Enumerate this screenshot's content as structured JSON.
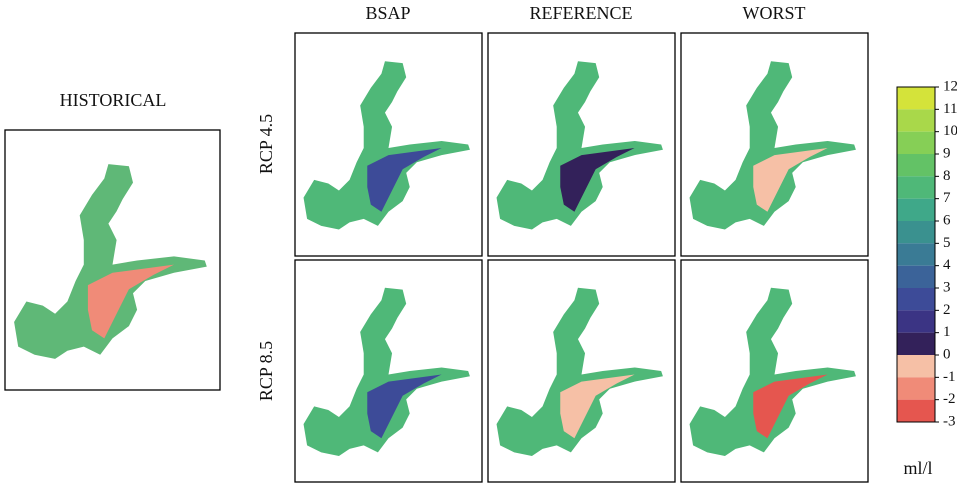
{
  "historical": {
    "title": "HISTORICAL"
  },
  "columns": [
    "BSAP",
    "REFERENCE",
    "WORST"
  ],
  "rows": [
    "RCP 4.5",
    "RCP 8.5"
  ],
  "colorbar": {
    "ticks": [
      12,
      11,
      10,
      9,
      8,
      7,
      6,
      5,
      4,
      3,
      2,
      1,
      0,
      -1,
      -2,
      -3
    ],
    "colors": [
      "#d4e33a",
      "#a9d84a",
      "#86cf56",
      "#63c266",
      "#4fb878",
      "#3fa889",
      "#3a918f",
      "#3a7b95",
      "#3b6399",
      "#3d4b98",
      "#3b3484",
      "#33215a",
      "#f6c0a6",
      "#f08b78",
      "#e5564f"
    ],
    "unit": "ml/l"
  }
}
